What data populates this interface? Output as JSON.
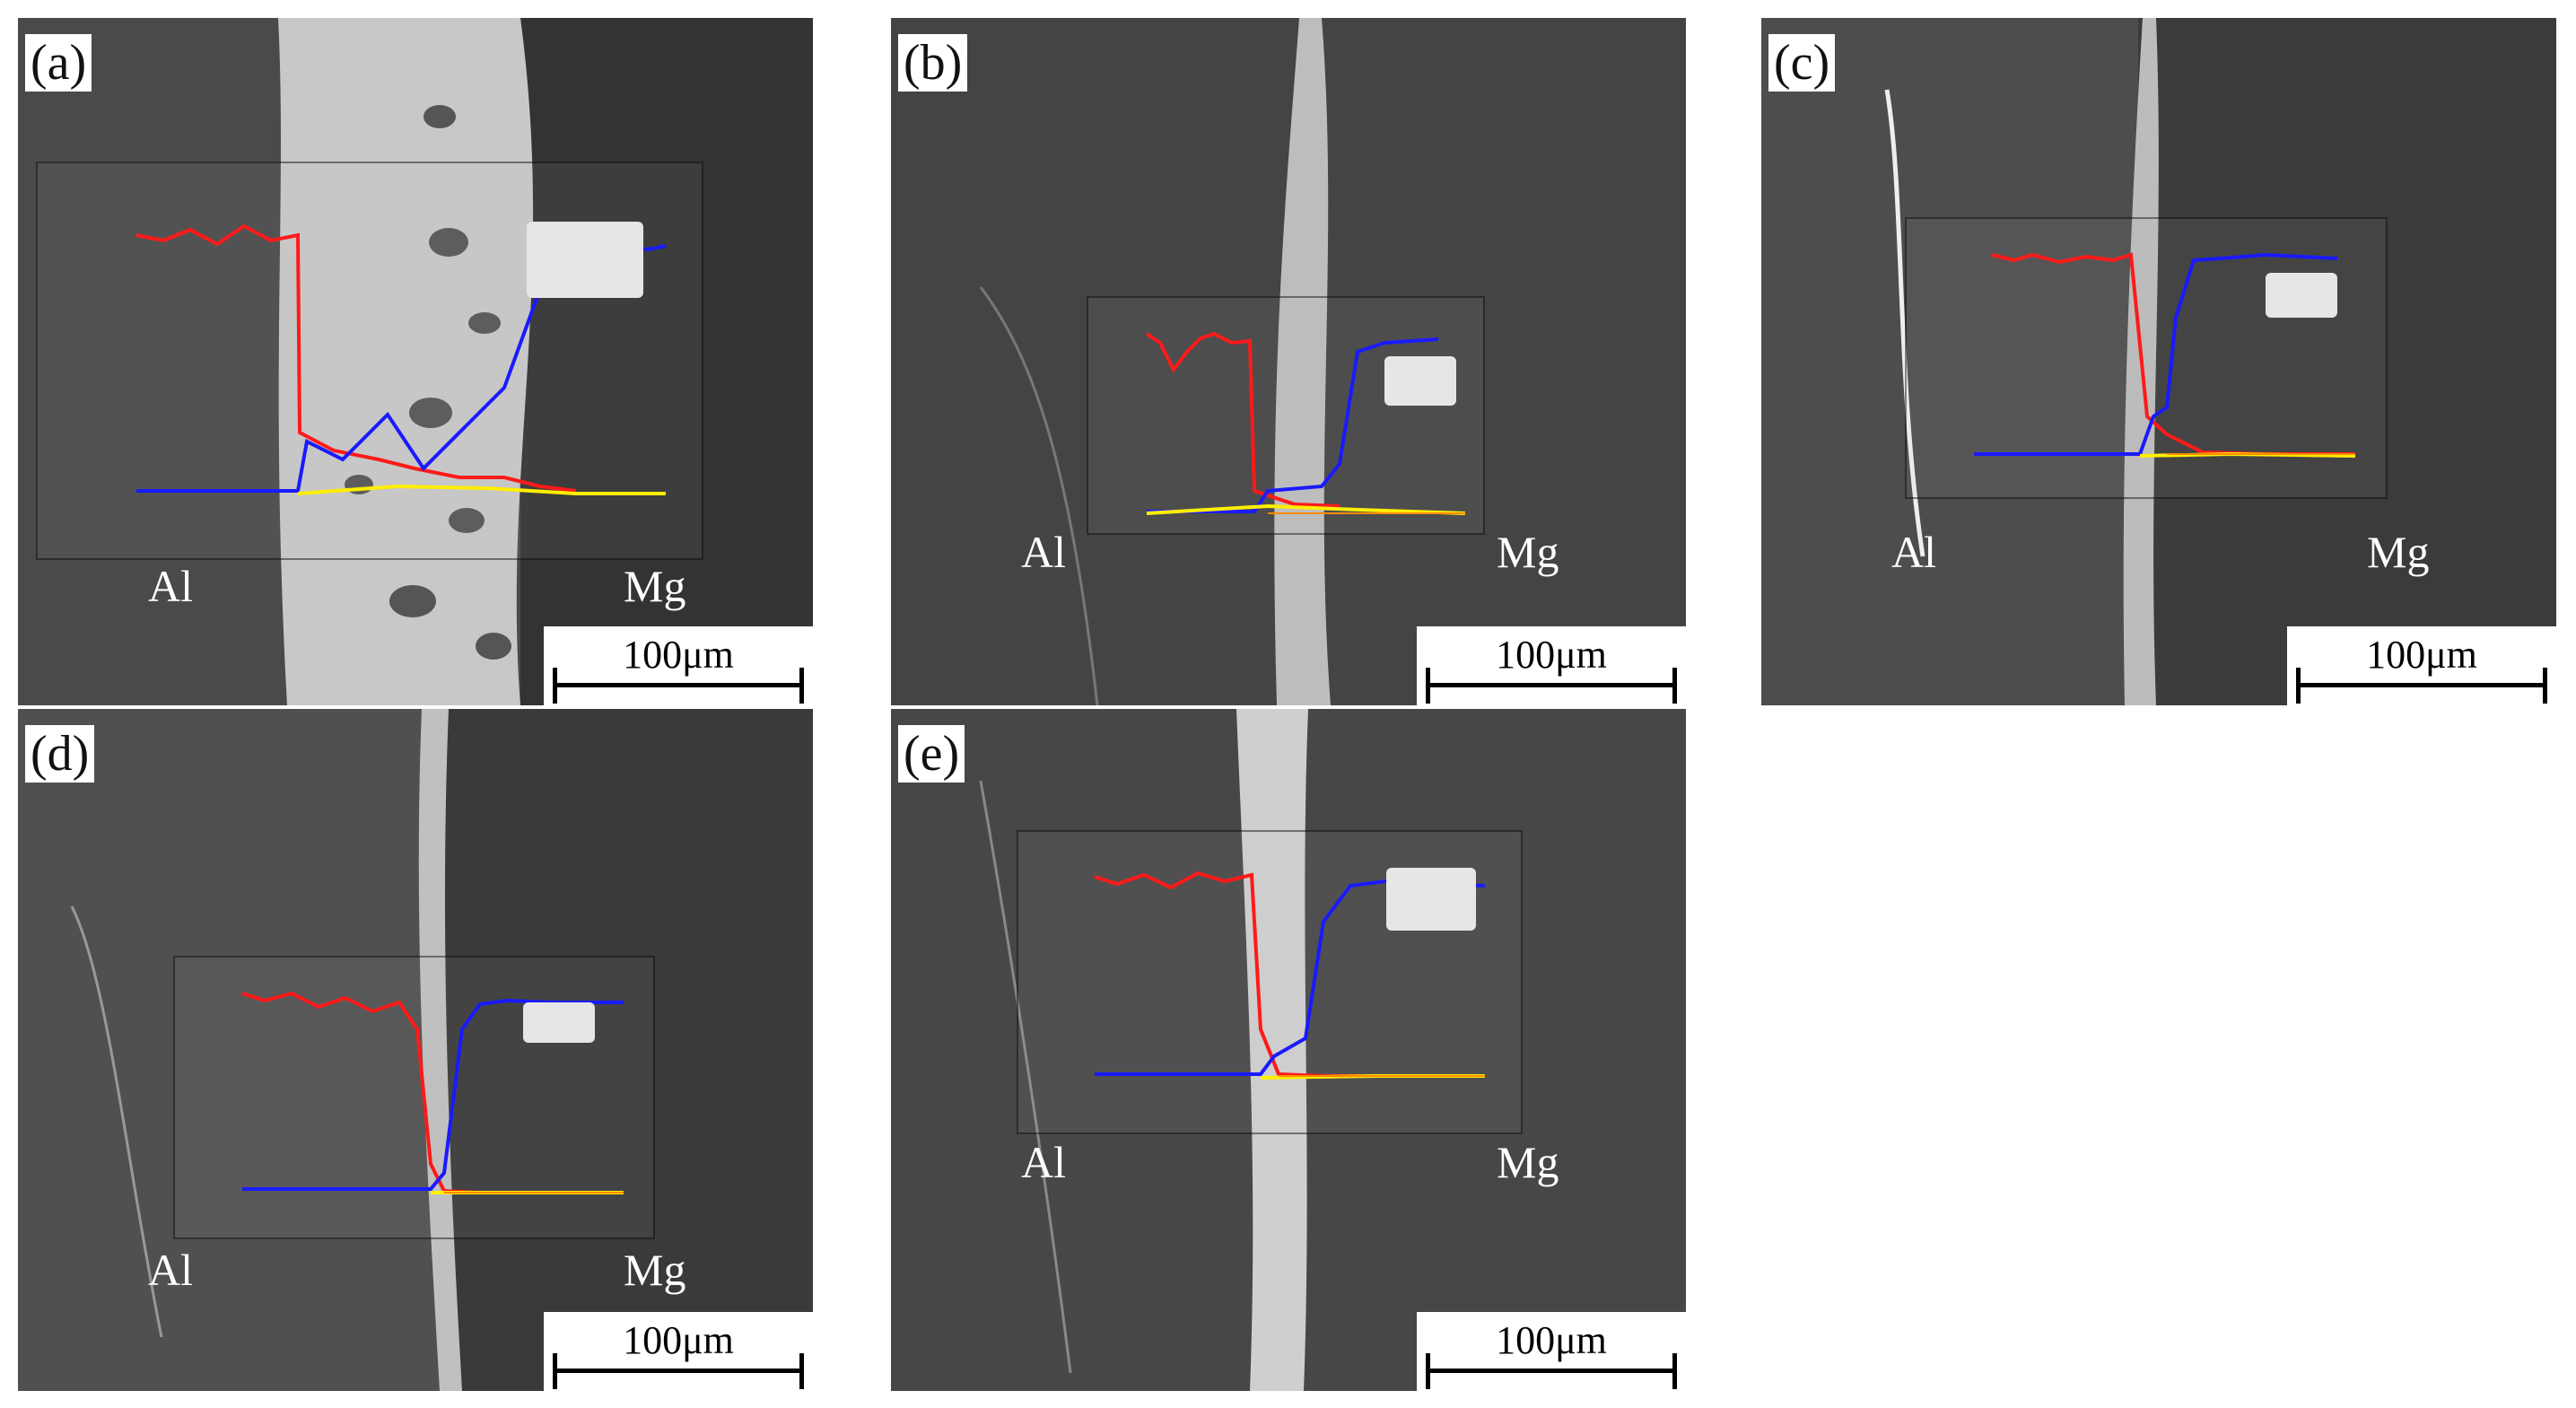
{
  "figure": {
    "panels": [
      {
        "id": "a",
        "label": "(a)",
        "left_phase": "Al",
        "right_phase": "Mg",
        "scale_text": "100μm"
      },
      {
        "id": "b",
        "label": "(b)",
        "left_phase": "Al",
        "right_phase": "Mg",
        "scale_text": "100μm"
      },
      {
        "id": "c",
        "label": "(c)",
        "left_phase": "Al",
        "right_phase": "Mg",
        "scale_text": "100μm"
      },
      {
        "id": "d",
        "label": "(d)",
        "left_phase": "Al",
        "right_phase": "Mg",
        "scale_text": "100μm"
      },
      {
        "id": "e",
        "label": "(e)",
        "left_phase": "Al",
        "right_phase": "Mg",
        "scale_text": "100μm"
      }
    ],
    "linescan_colors": {
      "al": "#ff1a1a",
      "mg": "#1a1aff",
      "zn": "#ffee00",
      "other": "#ff8c00"
    }
  }
}
